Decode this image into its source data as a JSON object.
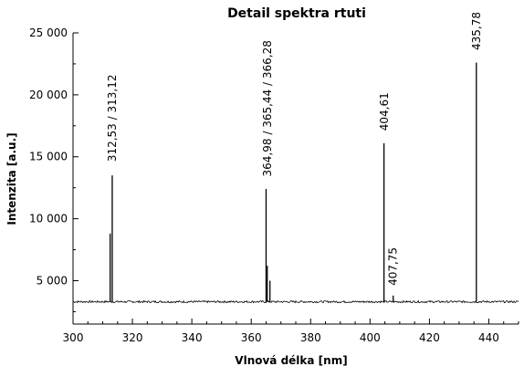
{
  "chart_data": {
    "type": "line",
    "title": "Detail spektra rtuti",
    "xlabel": "Vlnová délka [nm]",
    "ylabel": "Intenzita [a.u.]",
    "xlim": [
      300,
      450
    ],
    "ylim": [
      1500,
      25000
    ],
    "xticks": [
      300,
      320,
      340,
      360,
      380,
      400,
      420,
      440
    ],
    "xtick_labels": [
      "300",
      "320",
      "340",
      "360",
      "380",
      "400",
      "420",
      "440"
    ],
    "yticks": [
      5000,
      10000,
      15000,
      20000,
      25000
    ],
    "ytick_labels": [
      "5 000",
      "10 000",
      "15 000",
      "20 000",
      "25 000"
    ],
    "baseline": 3300,
    "grid": false,
    "series": [
      {
        "x": [
          312.5,
          313.2,
          365.0,
          365.4,
          366.3,
          404.7,
          407.8,
          435.8
        ],
        "y": [
          8800,
          13500,
          12400,
          6200,
          5000,
          16100,
          3800,
          22600
        ]
      }
    ],
    "annotations": [
      {
        "text": "312,53 / 313,12",
        "x": 313.2,
        "y": 14600
      },
      {
        "text": "364,98 / 365,44 / 366,28",
        "x": 365.4,
        "y": 13400
      },
      {
        "text": "404,61",
        "x": 404.8,
        "y": 17100
      },
      {
        "text": "407,75",
        "x": 407.8,
        "y": 4600
      },
      {
        "text": "435,78",
        "x": 435.8,
        "y": 23600
      }
    ]
  }
}
